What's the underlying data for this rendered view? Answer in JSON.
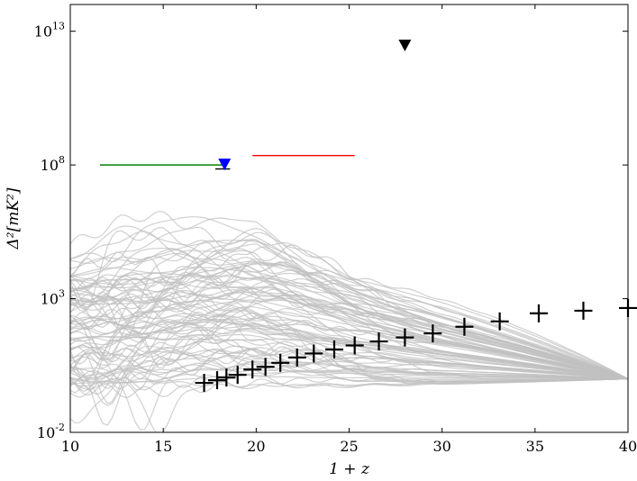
{
  "chart_data": {
    "type": "line",
    "title": "",
    "xlabel": "1 + z",
    "ylabel": "Δ²[mK²]",
    "xlim": [
      10,
      40
    ],
    "ylim_log10": [
      -2,
      14
    ],
    "yscale": "log",
    "x_ticks": [
      10,
      15,
      20,
      25,
      30,
      35,
      40
    ],
    "x_tick_labels": [
      "10",
      "15",
      "20",
      "25",
      "30",
      "35",
      "40"
    ],
    "y_ticks_log10": [
      -2,
      3,
      8,
      13
    ],
    "y_tick_labels": [
      {
        "base": "10",
        "exp": "-2"
      },
      {
        "base": "10",
        "exp": "3"
      },
      {
        "base": "10",
        "exp": "8"
      },
      {
        "base": "10",
        "exp": "13"
      }
    ],
    "model_curves": {
      "count": 90,
      "color": "#c0c0c0",
      "x_start": 10,
      "x_end": 40,
      "converge_log10_at_x40": 0.0
    },
    "sensitivity_points": {
      "marker": "+",
      "color": "#000000",
      "x": [
        17.2,
        17.9,
        18.4,
        19.0,
        19.8,
        20.5,
        21.3,
        22.2,
        23.1,
        24.2,
        25.3,
        26.6,
        28.0,
        29.5,
        31.2,
        33.1,
        35.2,
        37.6,
        40.0
      ],
      "y_log10": [
        -0.15,
        -0.05,
        0.05,
        0.15,
        0.35,
        0.45,
        0.6,
        0.8,
        0.95,
        1.1,
        1.25,
        1.4,
        1.55,
        1.7,
        1.95,
        2.15,
        2.45,
        2.55,
        2.65
      ]
    },
    "upper_limits": [
      {
        "x": 28.0,
        "y_log10": 12.45,
        "color": "#000000",
        "marker": "down-triangle"
      },
      {
        "x": 18.3,
        "y_log10": 8.0,
        "color": "#0000ff",
        "marker": "down-triangle"
      }
    ],
    "range_limits": [
      {
        "x_start": 11.6,
        "x_end": 18.2,
        "y_log10": 8.0,
        "color": "#008000"
      },
      {
        "x_start": 19.8,
        "x_end": 25.3,
        "y_log10": 8.35,
        "color": "#ff0000"
      },
      {
        "x_start": 17.8,
        "x_end": 18.6,
        "y_log10": 7.85,
        "color": "#000000"
      }
    ],
    "grid": false,
    "legend": "none"
  }
}
